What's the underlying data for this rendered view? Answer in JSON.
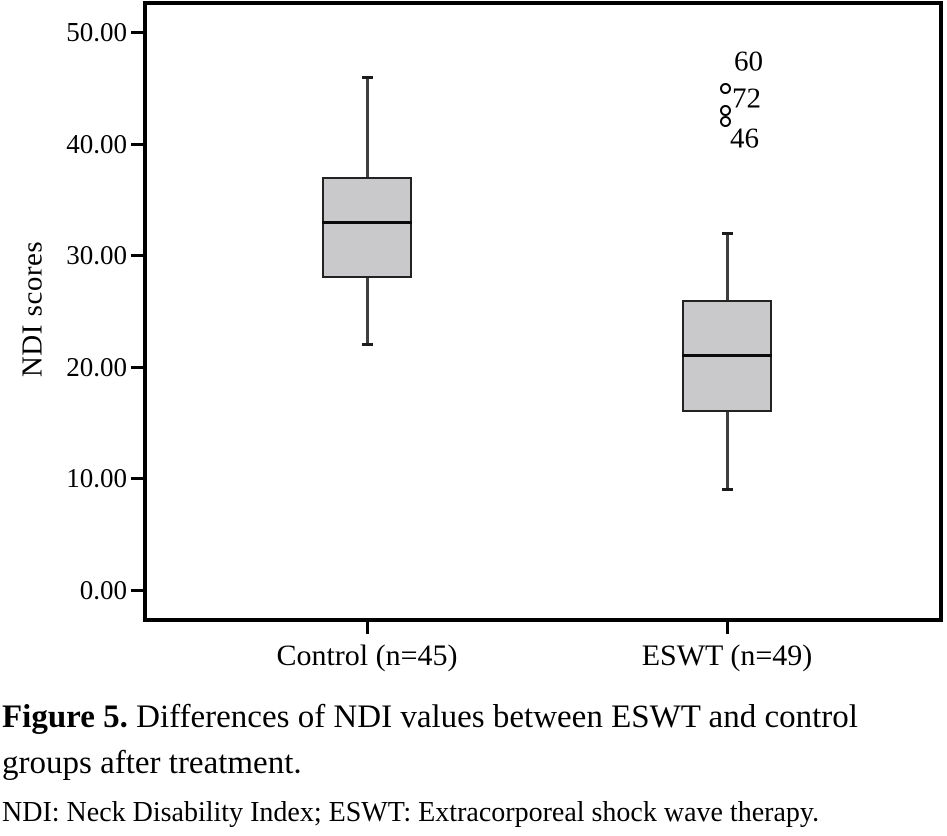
{
  "chart_data": {
    "type": "box",
    "title": "",
    "xlabel": "",
    "ylabel": "NDI scores",
    "ylim": [
      0,
      53
    ],
    "grid": false,
    "yticks": [
      {
        "value": 0,
        "label": "0.00"
      },
      {
        "value": 10,
        "label": "10.00"
      },
      {
        "value": 20,
        "label": "20.00"
      },
      {
        "value": 30,
        "label": "30.00"
      },
      {
        "value": 40,
        "label": "40.00"
      },
      {
        "value": 50,
        "label": "50.00"
      }
    ],
    "categories": [
      "Control (n=45)",
      "ESWT (n=49)"
    ],
    "series": [
      {
        "name": "Control (n=45)",
        "min": 22,
        "q1": 28,
        "median": 33,
        "q3": 37,
        "max": 46,
        "outliers": []
      },
      {
        "name": "ESWT (n=49)",
        "min": 9,
        "q1": 16,
        "median": 21,
        "q3": 26,
        "max": 32,
        "outliers": [
          {
            "case": "60",
            "value": 45
          },
          {
            "case": "72",
            "value": 43
          },
          {
            "case": "46",
            "value": 42
          }
        ]
      }
    ],
    "box_fill": "#c9c9cb",
    "box_border": "#222222"
  },
  "caption": {
    "label": "Figure 5.",
    "text": "Differences of NDI values between ESWT and control groups after treatment.",
    "footnote": "NDI: Neck Disability Index; ESWT: Extracorporeal shock wave therapy."
  }
}
